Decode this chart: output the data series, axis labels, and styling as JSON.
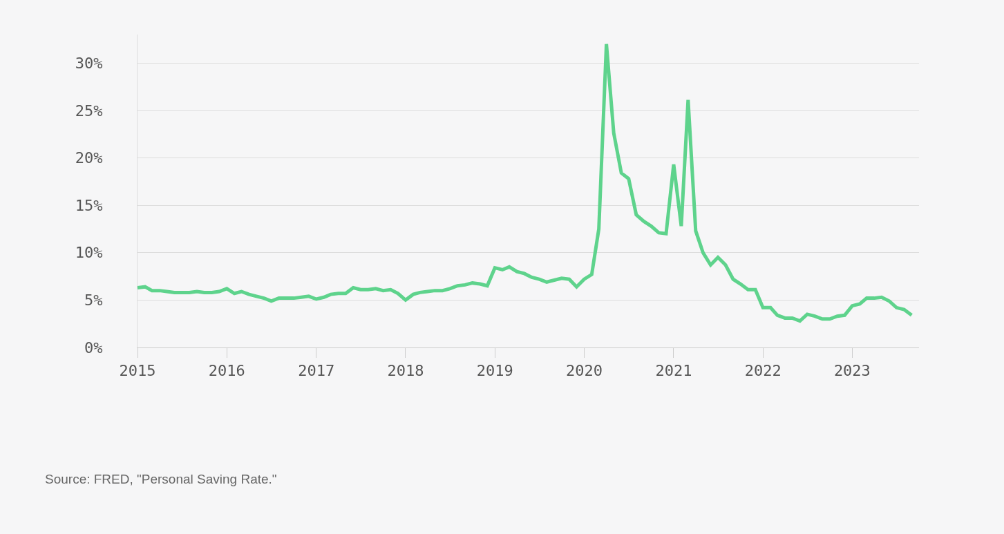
{
  "chart_data": {
    "type": "line",
    "x": [
      "2015-01",
      "2015-02",
      "2015-03",
      "2015-04",
      "2015-05",
      "2015-06",
      "2015-07",
      "2015-08",
      "2015-09",
      "2015-10",
      "2015-11",
      "2015-12",
      "2016-01",
      "2016-02",
      "2016-03",
      "2016-04",
      "2016-05",
      "2016-06",
      "2016-07",
      "2016-08",
      "2016-09",
      "2016-10",
      "2016-11",
      "2016-12",
      "2017-01",
      "2017-02",
      "2017-03",
      "2017-04",
      "2017-05",
      "2017-06",
      "2017-07",
      "2017-08",
      "2017-09",
      "2017-10",
      "2017-11",
      "2017-12",
      "2018-01",
      "2018-02",
      "2018-03",
      "2018-04",
      "2018-05",
      "2018-06",
      "2018-07",
      "2018-08",
      "2018-09",
      "2018-10",
      "2018-11",
      "2018-12",
      "2019-01",
      "2019-02",
      "2019-03",
      "2019-04",
      "2019-05",
      "2019-06",
      "2019-07",
      "2019-08",
      "2019-09",
      "2019-10",
      "2019-11",
      "2019-12",
      "2020-01",
      "2020-02",
      "2020-03",
      "2020-04",
      "2020-05",
      "2020-06",
      "2020-07",
      "2020-08",
      "2020-09",
      "2020-10",
      "2020-11",
      "2020-12",
      "2021-01",
      "2021-02",
      "2021-03",
      "2021-04",
      "2021-05",
      "2021-06",
      "2021-07",
      "2021-08",
      "2021-09",
      "2021-10",
      "2021-11",
      "2021-12",
      "2022-01",
      "2022-02",
      "2022-03",
      "2022-04",
      "2022-05",
      "2022-06",
      "2022-07",
      "2022-08",
      "2022-09",
      "2022-10",
      "2022-11",
      "2022-12",
      "2023-01",
      "2023-02",
      "2023-03",
      "2023-04",
      "2023-05",
      "2023-06",
      "2023-07",
      "2023-08",
      "2023-09"
    ],
    "series": [
      {
        "color": "#5ed38c",
        "values": [
          6.3,
          6.4,
          6.0,
          6.0,
          5.9,
          5.8,
          5.8,
          5.8,
          5.9,
          5.8,
          5.8,
          5.9,
          6.2,
          5.7,
          5.9,
          5.6,
          5.4,
          5.2,
          4.9,
          5.2,
          5.2,
          5.2,
          5.3,
          5.4,
          5.1,
          5.3,
          5.6,
          5.7,
          5.7,
          6.3,
          6.1,
          6.1,
          6.2,
          6.0,
          6.1,
          5.7,
          5.0,
          5.6,
          5.8,
          5.9,
          6.0,
          6.0,
          6.2,
          6.5,
          6.6,
          6.8,
          6.7,
          6.5,
          8.4,
          8.2,
          8.5,
          8.0,
          7.8,
          7.4,
          7.2,
          6.9,
          7.1,
          7.3,
          7.2,
          6.4,
          7.2,
          7.7,
          12.5,
          32,
          22.6,
          18.4,
          17.8,
          14.0,
          13.3,
          12.8,
          12.1,
          12.0,
          19.3,
          12.8,
          26.1,
          12.3,
          10.0,
          8.7,
          9.5,
          8.7,
          7.2,
          6.7,
          6.1,
          6.1,
          4.2,
          4.2,
          3.4,
          3.1,
          3.1,
          2.8,
          3.5,
          3.3,
          3.0,
          3.0,
          3.3,
          3.4,
          4.4,
          4.6,
          5.2,
          5.2,
          5.3,
          4.9,
          4.2,
          4.0,
          3.4
        ]
      }
    ],
    "ylim": [
      0,
      33
    ],
    "yticks": [
      {
        "value": 0,
        "label": "0%"
      },
      {
        "value": 5,
        "label": "5%"
      },
      {
        "value": 10,
        "label": "10%"
      },
      {
        "value": 15,
        "label": "15%"
      },
      {
        "value": 20,
        "label": "20%"
      },
      {
        "value": 25,
        "label": "25%"
      },
      {
        "value": 30,
        "label": "30%"
      }
    ],
    "xlim": [
      "2015-01",
      "2023-10"
    ],
    "xticks": [
      "2015",
      "2016",
      "2017",
      "2018",
      "2019",
      "2020",
      "2021",
      "2022",
      "2023"
    ],
    "grid": "y",
    "marker": "none",
    "line_style": "solid",
    "annotations": [
      "Source: FRED, \"Personal Saving Rate.\""
    ]
  }
}
